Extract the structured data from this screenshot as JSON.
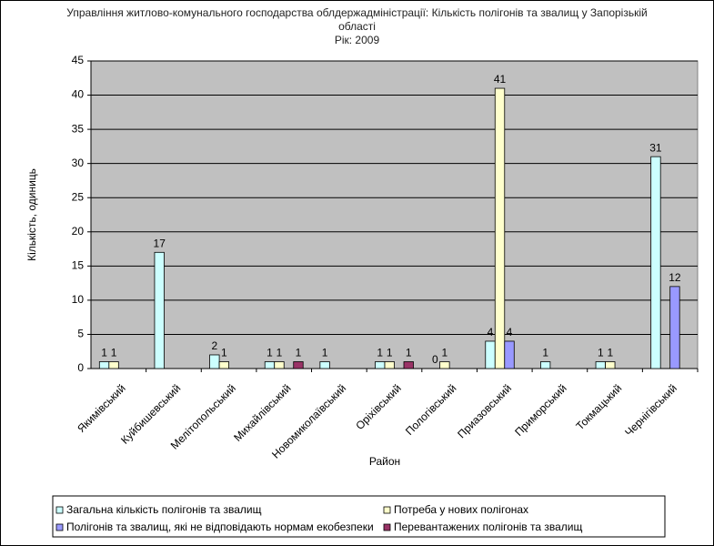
{
  "chart_data": {
    "type": "bar",
    "title": "Управління житлово-комунального господарства облдержадміністрації: Кількість полігонів та звалищ у Запорізькій області",
    "subtitle": "Рік: 2009",
    "x_label": "Район",
    "y_label": "Кількість, одиниць",
    "categories": [
      "Якимівський",
      "Куйбишевський",
      "Мелітопольський",
      "Михайлівський",
      "Новомиколаївський",
      "Оріхівський",
      "Пологівський",
      "Приазовський",
      "Приморський",
      "Токмацький",
      "Чернігівський"
    ],
    "series": [
      {
        "name": "Загальна кількість полігонів та звалищ",
        "color": "#ccffff",
        "values": [
          1,
          17,
          2,
          1,
          1,
          1,
          0,
          4,
          1,
          1,
          31
        ]
      },
      {
        "name": "Потреба у нових полігонах",
        "color": "#ffffcc",
        "values": [
          1,
          null,
          1,
          1,
          null,
          1,
          1,
          41,
          null,
          1,
          null
        ]
      },
      {
        "name": "Полігонів та звалищ, які не відповідають нормам екобезпеки",
        "color": "#9999ff",
        "values": [
          null,
          null,
          null,
          null,
          null,
          null,
          null,
          4,
          null,
          null,
          12
        ]
      },
      {
        "name": "Перевантажених полігонів та звалищ",
        "color": "#993366",
        "values": [
          null,
          null,
          null,
          1,
          null,
          1,
          null,
          null,
          null,
          null,
          null
        ]
      }
    ],
    "ylim": [
      0,
      45
    ],
    "yticks": [
      0,
      5,
      10,
      15,
      20,
      25,
      30,
      35,
      40,
      45
    ],
    "grid": true
  }
}
